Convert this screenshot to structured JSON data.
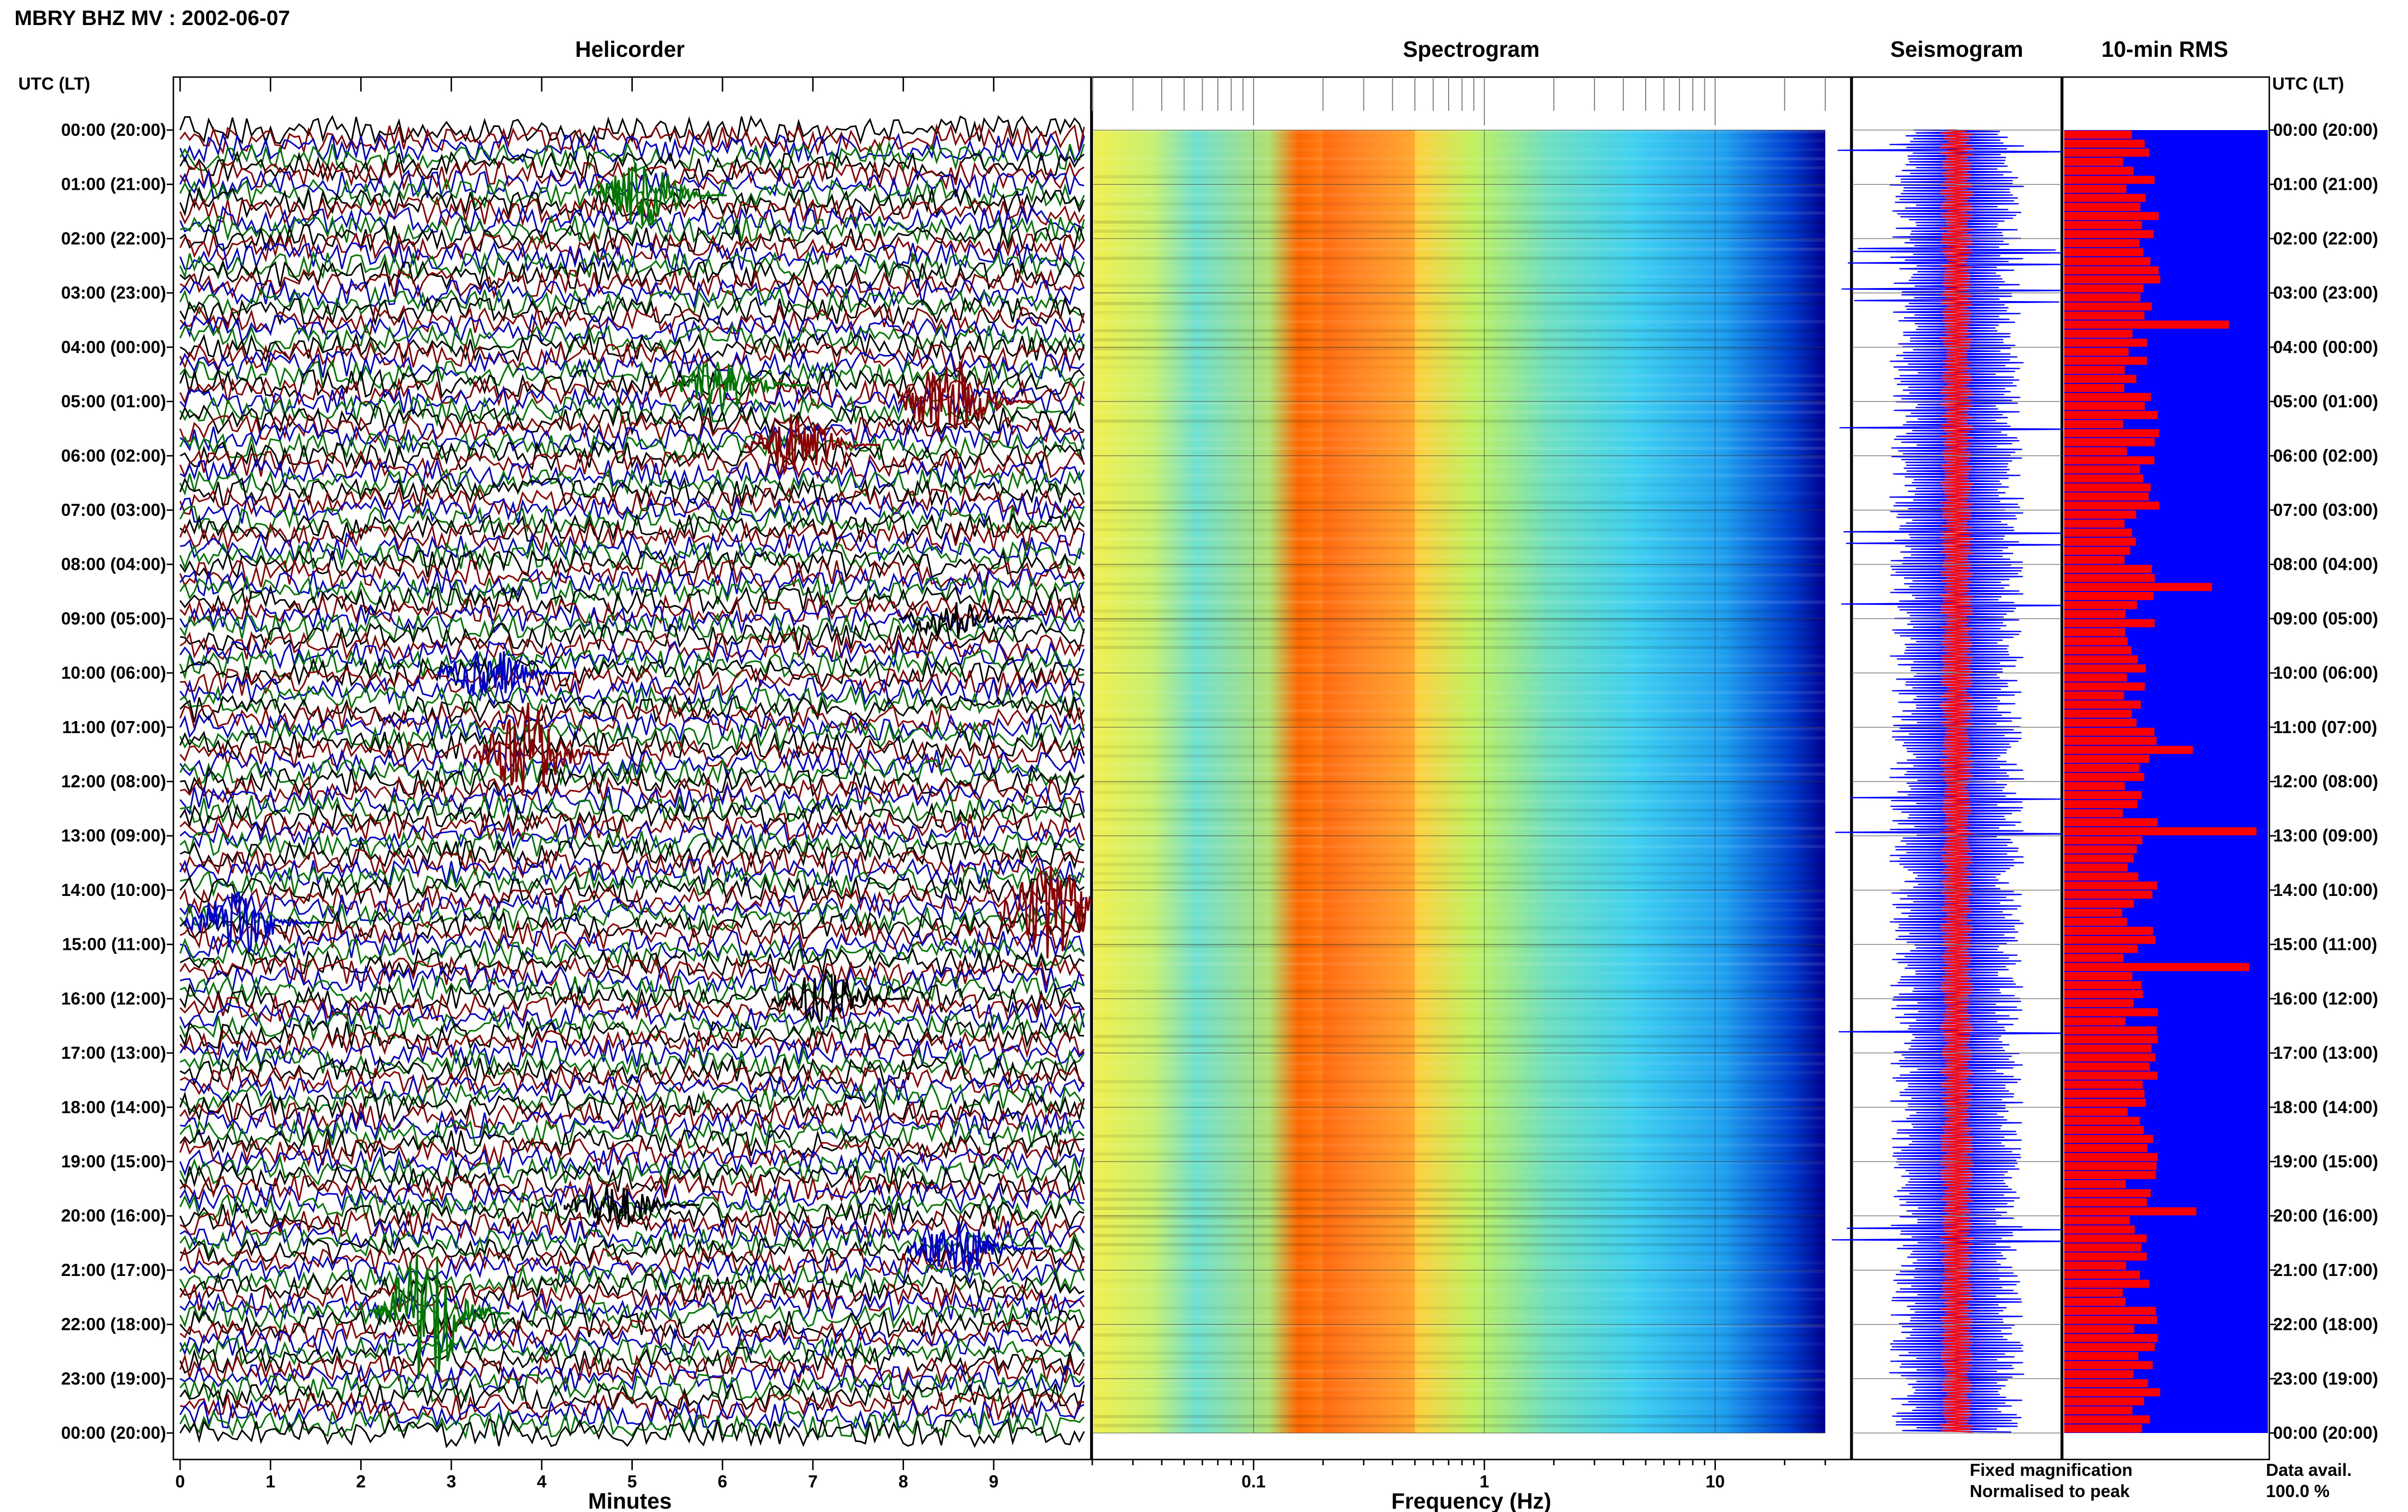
{
  "figure": {
    "title": "MBRY BHZ MV : 2002-06-07",
    "utc_header_left": "UTC (LT)",
    "utc_header_right": "UTC (LT)"
  },
  "chart_data": [
    {
      "type": "line",
      "panel": "Helicorder",
      "title": "Helicorder",
      "xlabel": "Minutes",
      "x_ticks": [
        "0",
        "1",
        "2",
        "3",
        "4",
        "5",
        "6",
        "7",
        "8",
        "9"
      ],
      "xlim": [
        0,
        10
      ],
      "rows_per_hour": 6,
      "row_colors": [
        "#000000",
        "#8b0000",
        "#0000cc",
        "#007700"
      ],
      "y_tick_labels": [
        "00:00 (20:00)",
        "01:00 (21:00)",
        "02:00 (22:00)",
        "03:00 (23:00)",
        "04:00 (00:00)",
        "05:00 (01:00)",
        "06:00 (02:00)",
        "07:00 (03:00)",
        "08:00 (04:00)",
        "09:00 (05:00)",
        "10:00 (06:00)",
        "11:00 (07:00)",
        "12:00 (08:00)",
        "13:00 (09:00)",
        "14:00 (10:00)",
        "15:00 (11:00)",
        "16:00 (12:00)",
        "17:00 (13:00)",
        "18:00 (14:00)",
        "19:00 (15:00)",
        "20:00 (16:00)",
        "21:00 (17:00)",
        "22:00 (18:00)",
        "23:00 (19:00)",
        "00:00 (20:00)"
      ]
    },
    {
      "type": "heatmap",
      "panel": "Spectrogram",
      "title": "Spectrogram",
      "xlabel": "Frequency (Hz)",
      "x_scale": "log",
      "x_ticks": [
        "0.1",
        "1",
        "10"
      ],
      "xlim": [
        0.02,
        30
      ],
      "colormap": "jet",
      "peak_band_hz": [
        0.2,
        0.5
      ]
    },
    {
      "type": "line",
      "panel": "Seismogram",
      "title": "Seismogram",
      "colors": {
        "fixed": "#0000ff",
        "normalised": "#ff0000"
      }
    },
    {
      "type": "bar",
      "panel": "10-min RMS",
      "title": "10-min RMS",
      "colors": {
        "background": "#0000ff",
        "bars": "#ff0000"
      }
    }
  ],
  "legend": {
    "fixed": "Fixed magnification",
    "normalised": "Normalised to peak",
    "fixed_color": "#0000ff",
    "normalised_color": "#ff0000"
  },
  "data_avail": {
    "label": "Data avail.",
    "value": "100.0 %"
  }
}
